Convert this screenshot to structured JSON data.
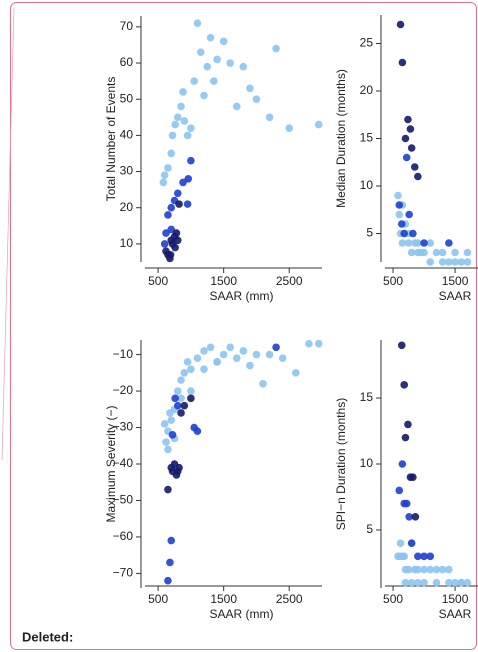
{
  "label": "Deleted:",
  "chart_data": [
    {
      "type": "scatter",
      "ylabel": "Total Number of Events",
      "xlabel": "SAAR (mm)",
      "xlim": [
        300,
        3000
      ],
      "xticks": [
        500,
        1500,
        2500
      ],
      "ylim": [
        5,
        73
      ],
      "yticks": [
        10,
        20,
        30,
        40,
        50,
        60,
        70
      ],
      "series": [
        {
          "color": "#8cc4ee",
          "x": [
            580,
            600,
            650,
            700,
            720,
            760,
            800,
            850,
            880,
            900,
            950,
            1000,
            1050,
            1100,
            1150,
            1200,
            1250,
            1300,
            1350,
            1400,
            1500,
            1600,
            1700,
            1800,
            1900,
            2000,
            2200,
            2300,
            2500,
            2950
          ],
          "values": [
            27,
            29,
            31,
            35,
            40,
            43,
            45,
            48,
            52,
            44,
            40,
            42,
            55,
            71,
            63,
            51,
            59,
            67,
            55,
            61,
            66,
            60,
            48,
            59,
            53,
            50,
            45,
            64,
            42,
            43
          ]
        },
        {
          "color": "#1f3fd0",
          "x": [
            600,
            650,
            700,
            750,
            800,
            950,
            1000,
            700,
            620,
            880,
            960
          ],
          "values": [
            10,
            18,
            20,
            22,
            24,
            21,
            33,
            14,
            13,
            27,
            28
          ]
        },
        {
          "color": "#141a6b",
          "x": [
            620,
            650,
            680,
            700,
            720,
            750,
            780,
            800,
            820,
            760,
            690
          ],
          "values": [
            8,
            7,
            6,
            11,
            10,
            12,
            13,
            11,
            21,
            9,
            7
          ]
        }
      ]
    },
    {
      "type": "scatter",
      "ylabel": "Median Duration (months)",
      "xlabel": "SAAR",
      "xlim": [
        370,
        1870
      ],
      "xticks": [
        500,
        1500
      ],
      "ylim": [
        2,
        28
      ],
      "yticks": [
        5,
        10,
        15,
        20,
        25
      ],
      "series": [
        {
          "color": "#8cc4ee",
          "x": [
            580,
            600,
            620,
            650,
            700,
            750,
            800,
            850,
            900,
            950,
            1000,
            1100,
            1200,
            1300,
            1400,
            1500,
            1600,
            1700,
            650,
            750,
            900,
            1100,
            1300,
            1500,
            1700
          ],
          "values": [
            9,
            7,
            5,
            4,
            6,
            4,
            3,
            4,
            3,
            3,
            3,
            4,
            3,
            3,
            2,
            3,
            2,
            3,
            8,
            5,
            4,
            2,
            2,
            2,
            2
          ]
        },
        {
          "color": "#1f3fd0",
          "x": [
            600,
            640,
            680,
            720,
            760,
            820,
            1000,
            1400
          ],
          "values": [
            8,
            6,
            5,
            13,
            7,
            5,
            4,
            4
          ]
        },
        {
          "color": "#141a6b",
          "x": [
            620,
            650,
            700,
            740,
            780,
            800,
            850,
            900
          ],
          "values": [
            27,
            23,
            15,
            17,
            16,
            14,
            12,
            11
          ]
        }
      ]
    },
    {
      "type": "scatter",
      "ylabel": "Maximum Severity (−)",
      "xlabel": "SAAR (mm)",
      "xlim": [
        300,
        3000
      ],
      "xticks": [
        500,
        1500,
        2500
      ],
      "ylim": [
        -74,
        -6
      ],
      "yticks": [
        {
          "value": -10,
          "label": "−10"
        },
        {
          "value": -20,
          "label": "−20"
        },
        {
          "value": -30,
          "label": "−30"
        },
        {
          "value": -40,
          "label": "−40"
        },
        {
          "value": -50,
          "label": "−50"
        },
        {
          "value": -60,
          "label": "−60"
        },
        {
          "value": -70,
          "label": "−70"
        }
      ],
      "series": [
        {
          "color": "#8cc4ee",
          "x": [
            600,
            620,
            650,
            680,
            700,
            750,
            800,
            850,
            900,
            950,
            1000,
            1100,
            1200,
            1300,
            1400,
            1500,
            1600,
            1700,
            1800,
            1900,
            2000,
            2100,
            2200,
            2400,
            2600,
            2800,
            2950,
            650,
            750,
            850,
            1000,
            1200,
            1400
          ],
          "values": [
            -29,
            -34,
            -31,
            -26,
            -28,
            -33,
            -20,
            -17,
            -15,
            -12,
            -14,
            -11,
            -9,
            -8,
            -12,
            -10,
            -8,
            -11,
            -9,
            -13,
            -10,
            -18,
            -10,
            -11,
            -15,
            -7,
            -7,
            -36,
            -25,
            -22,
            -20,
            -14,
            -12
          ]
        },
        {
          "color": "#1f3fd0",
          "x": [
            650,
            680,
            700,
            720,
            760,
            800,
            1050,
            1100,
            2300
          ],
          "values": [
            -72,
            -67,
            -61,
            -32,
            -22,
            -24,
            -30,
            -31,
            -8
          ]
        },
        {
          "color": "#141a6b",
          "x": [
            650,
            700,
            720,
            750,
            780,
            800,
            820,
            850,
            900,
            1000
          ],
          "values": [
            -47,
            -41,
            -42,
            -40,
            -43,
            -42,
            -41,
            -26,
            -24,
            -22
          ]
        }
      ]
    },
    {
      "type": "scatter",
      "ylabel": "SPI−n Duration (months)",
      "xlabel": "SAAR",
      "xlim": [
        370,
        1870
      ],
      "xticks": [
        500,
        1500
      ],
      "ylim": [
        0.6,
        19.4
      ],
      "yticks": [
        5,
        10,
        15
      ],
      "series": [
        {
          "color": "#8cc4ee",
          "x": [
            580,
            600,
            650,
            700,
            750,
            800,
            850,
            900,
            1000,
            1100,
            1200,
            1300,
            1400,
            1500,
            1600,
            1700,
            700,
            800,
            900,
            1000,
            1200,
            1400,
            1600,
            620,
            680
          ],
          "values": [
            3,
            3,
            3,
            2,
            2,
            4,
            2,
            2,
            2,
            2,
            2,
            2,
            2,
            1,
            1,
            1,
            1,
            1,
            1,
            1,
            1,
            1,
            1,
            4,
            3
          ]
        },
        {
          "color": "#1f3fd0",
          "x": [
            600,
            650,
            680,
            720,
            760,
            800,
            900,
            1000,
            1100
          ],
          "values": [
            8,
            10,
            7,
            7,
            6,
            4,
            3,
            3,
            3
          ]
        },
        {
          "color": "#141a6b",
          "x": [
            640,
            680,
            700,
            740,
            780,
            820,
            860
          ],
          "values": [
            19,
            16,
            12,
            13,
            9,
            9,
            6
          ]
        }
      ]
    }
  ]
}
